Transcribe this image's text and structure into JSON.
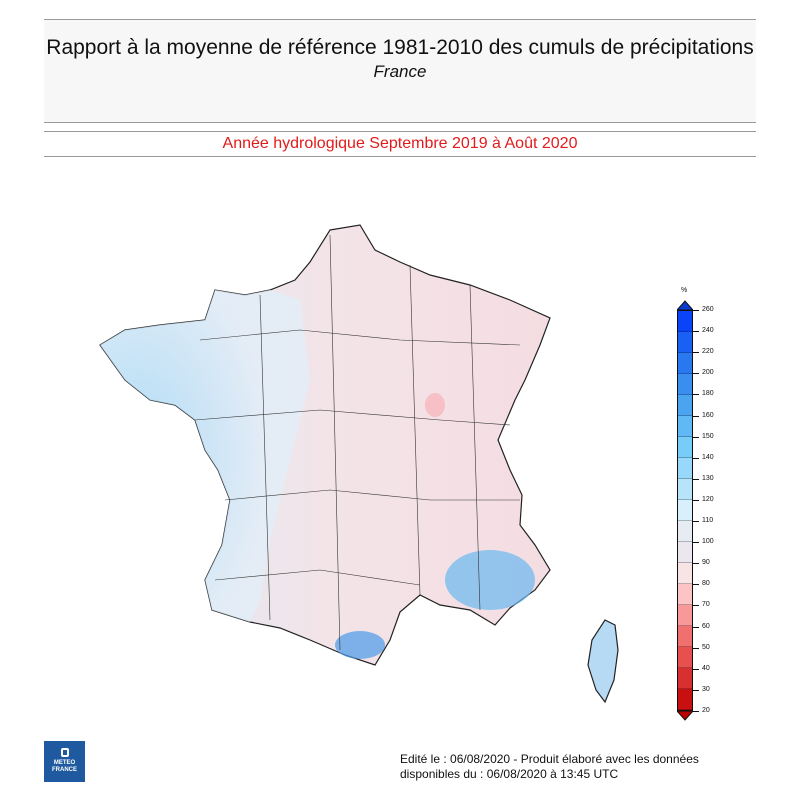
{
  "header": {
    "title": "Rapport à la moyenne de référence 1981-2010 des cumuls de précipitations",
    "region": "France"
  },
  "subtitle": "Année hydrologique  Septembre 2019 à Août 2020",
  "legend": {
    "unit": "%",
    "labels": [
      "260",
      "240",
      "220",
      "200",
      "180",
      "160",
      "150",
      "140",
      "130",
      "120",
      "110",
      "100",
      "90",
      "80",
      "70",
      "60",
      "50",
      "40",
      "30",
      "20"
    ],
    "colors": [
      "#0a44f8",
      "#1a60f4",
      "#2a78f0",
      "#3a8ef0",
      "#4aa4f0",
      "#60b8f4",
      "#78ccf8",
      "#98d8fa",
      "#b8e4fa",
      "#d8f0fc",
      "#e6ecf2",
      "#ece6ee",
      "#f8e4e4",
      "#fcc4c4",
      "#f89898",
      "#f07070",
      "#e85050",
      "#d83030",
      "#c81010"
    ]
  },
  "logo": {
    "text": "METEO FRANCE"
  },
  "footer": {
    "line1": "Edité le : 06/08/2020 - Produit élaboré avec les données",
    "line2": "disponibles du : 06/08/2020 à 13:45 UTC"
  }
}
